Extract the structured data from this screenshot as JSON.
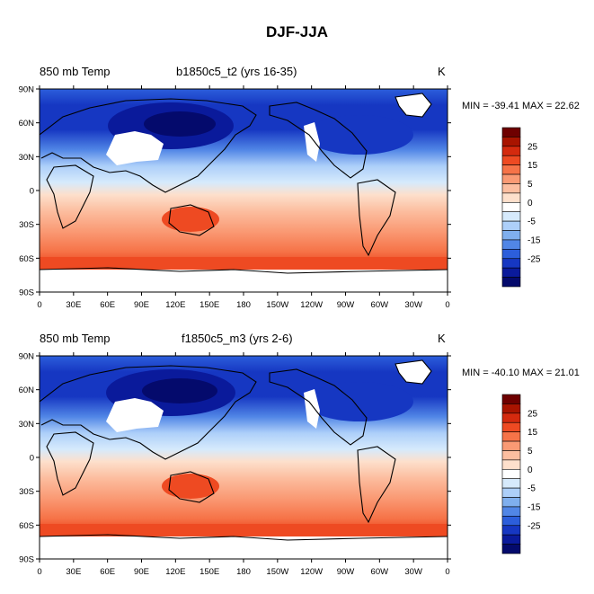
{
  "title": "DJF-JJA",
  "panels": [
    {
      "left_label": "850 mb Temp",
      "center_label": "b1850c5_t2 (yrs 16-35)",
      "right_label": "K",
      "minmax": "MIN = -39.41  MAX =  22.62"
    },
    {
      "left_label": "850 mb Temp",
      "center_label": "f1850c5_m3 (yrs 2-6)",
      "right_label": "K",
      "minmax": "MIN = -40.10  MAX =  21.01"
    }
  ],
  "lat_ticks": [
    "90N",
    "60N",
    "30N",
    "0",
    "30S",
    "60S",
    "90S"
  ],
  "lon_ticks": [
    "0",
    "30E",
    "60E",
    "90E",
    "120E",
    "150E",
    "180",
    "150W",
    "120W",
    "90W",
    "60W",
    "30W",
    "0"
  ],
  "colorbar": {
    "labels": [
      "25",
      "15",
      "5",
      "0",
      "-5",
      "-15",
      "-25"
    ],
    "colors": [
      "#6e0000",
      "#a81400",
      "#d42a0e",
      "#ee4a22",
      "#f67348",
      "#fa9a74",
      "#fcbea0",
      "#fde0cc",
      "#ffffff",
      "#d6eafc",
      "#adcff9",
      "#7fafee",
      "#5186e6",
      "#2c5edb",
      "#1637c2",
      "#0a1a9b",
      "#040a6c"
    ]
  },
  "colors": {
    "land_outline": "#000000",
    "missing": "#ffffff"
  }
}
